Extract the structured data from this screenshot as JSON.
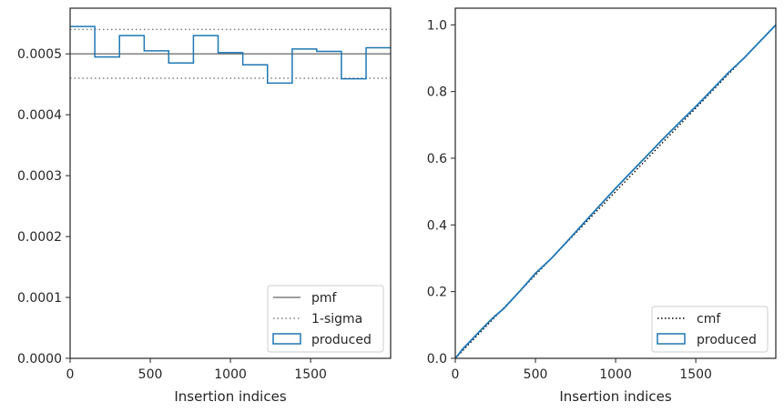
{
  "chart_data": [
    {
      "type": "step",
      "xlabel": "Insertion indices",
      "ylabel": "",
      "xlim": [
        0,
        1999
      ],
      "ylim": [
        0,
        0.000575
      ],
      "xticks": [
        0,
        500,
        1000,
        1500
      ],
      "xtick_labels": [
        "0",
        "500",
        "1000",
        "1500"
      ],
      "yticks": [
        0,
        0.0001,
        0.0002,
        0.0003,
        0.0004,
        0.0005
      ],
      "ytick_labels": [
        "0.0000",
        "0.0001",
        "0.0002",
        "0.0003",
        "0.0004",
        "0.0005"
      ],
      "grid": false,
      "legend_position": "bottom-right",
      "pmf": {
        "name": "pmf",
        "value": 0.0005,
        "color": "#808080"
      },
      "sigma": {
        "name": "1-sigma",
        "upper": 0.00054,
        "lower": 0.00046,
        "color": "#808080"
      },
      "histogram": {
        "name": "produced",
        "color": "#1f77b4",
        "bin_edges": [
          0,
          154,
          308,
          462,
          615,
          769,
          923,
          1077,
          1231,
          1385,
          1538,
          1692,
          1846,
          1999
        ],
        "values": [
          0.000545,
          0.000495,
          0.00053,
          0.000505,
          0.000485,
          0.00053,
          0.000502,
          0.000482,
          0.000452,
          0.000508,
          0.000504,
          0.000459,
          0.00051
        ]
      }
    },
    {
      "type": "line",
      "xlabel": "Insertion indices",
      "ylabel": "",
      "xlim": [
        0,
        1999
      ],
      "ylim": [
        0,
        1.05
      ],
      "xticks": [
        0,
        500,
        1000,
        1500
      ],
      "xtick_labels": [
        "0",
        "500",
        "1000",
        "1500"
      ],
      "yticks": [
        0,
        0.2,
        0.4,
        0.6,
        0.8,
        1.0
      ],
      "ytick_labels": [
        "0.0",
        "0.2",
        "0.4",
        "0.6",
        "0.8",
        "1.0"
      ],
      "grid": false,
      "legend_position": "bottom-right",
      "series": [
        {
          "name": "cmf",
          "style": "dotted",
          "color": "#000000",
          "x": [
            0,
            1999
          ],
          "y": [
            0,
            1.0
          ]
        },
        {
          "name": "produced",
          "style": "solid",
          "color": "#1f77b4",
          "x": [
            0,
            50,
            100,
            150,
            200,
            250,
            300,
            400,
            500,
            600,
            700,
            800,
            900,
            1000,
            1100,
            1200,
            1300,
            1400,
            1500,
            1600,
            1700,
            1800,
            1900,
            1999
          ],
          "y": [
            0,
            0.03,
            0.055,
            0.08,
            0.105,
            0.128,
            0.148,
            0.2,
            0.255,
            0.3,
            0.352,
            0.405,
            0.458,
            0.51,
            0.56,
            0.61,
            0.66,
            0.708,
            0.755,
            0.805,
            0.855,
            0.9,
            0.95,
            1.0
          ]
        }
      ]
    }
  ]
}
